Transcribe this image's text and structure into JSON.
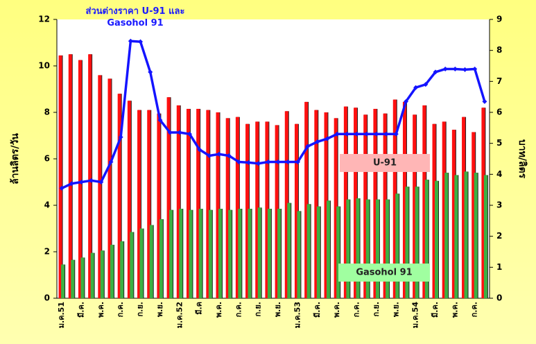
{
  "chart_data": {
    "type": "bar",
    "categories": [
      "ม.ค.51",
      null,
      "มี.ค.",
      null,
      "พ.ค.",
      null,
      "ก.ค.",
      null,
      "ก.ย.",
      null,
      "พ.ย.",
      null,
      "ม.ค.52",
      null,
      "มี.ค",
      null,
      "พ.ค.",
      null,
      "ก.ค.",
      null,
      "ก.ย.",
      null,
      "พ.ย.",
      null,
      "ม.ค.53",
      null,
      "มี.ค.",
      null,
      "พ.ค.",
      null,
      "ก.ค.",
      null,
      "ก.ย.",
      null,
      "พ.ย.",
      null,
      "ม.ค.54",
      null,
      "มี.ค.",
      null,
      "พ.ค.",
      null,
      "ก.ค.",
      null
    ],
    "y_label": "ล้านลิตร/วัน",
    "y2_label": "บาท/ลิตร",
    "ylim": [
      0,
      12
    ],
    "yticks": [
      0,
      2,
      4,
      6,
      8,
      10,
      12
    ],
    "y2lim": [
      0,
      9
    ],
    "y2ticks": [
      0,
      1,
      2,
      3,
      4,
      5,
      6,
      7,
      8,
      9
    ],
    "series": [
      {
        "name": "U-91",
        "color": "#ff1010",
        "legend_color": "#ffb6b6",
        "values": [
          10.45,
          10.5,
          10.25,
          10.5,
          9.6,
          9.45,
          8.8,
          8.5,
          8.1,
          8.1,
          7.95,
          8.65,
          8.3,
          8.15,
          8.15,
          8.1,
          8.0,
          7.75,
          7.8,
          7.5,
          7.6,
          7.6,
          7.45,
          8.05,
          7.5,
          8.45,
          8.1,
          8.0,
          7.75,
          8.25,
          8.2,
          7.9,
          8.15,
          7.95,
          8.55,
          8.45,
          7.9,
          8.3,
          7.5,
          7.6,
          7.25,
          7.8,
          7.15,
          8.2
        ]
      },
      {
        "name": "Gasohol 91",
        "color": "#3cb043",
        "legend_color": "#a0ffa0",
        "values": [
          1.45,
          1.65,
          1.75,
          1.95,
          2.05,
          2.3,
          2.45,
          2.85,
          3.0,
          3.15,
          3.4,
          3.8,
          3.85,
          3.8,
          3.85,
          3.8,
          3.85,
          3.8,
          3.85,
          3.85,
          3.9,
          3.85,
          3.85,
          4.1,
          3.75,
          4.05,
          3.95,
          4.2,
          3.95,
          4.25,
          4.3,
          4.25,
          4.25,
          4.25,
          4.5,
          4.8,
          4.8,
          5.1,
          5.05,
          5.4,
          5.3,
          5.45,
          5.4,
          5.3
        ]
      },
      {
        "name": "ส่วนต่างราคา U-91 และ Gasohol 91",
        "color": "#1414ff",
        "type": "line",
        "axis": "y2",
        "values": [
          3.55,
          3.7,
          3.75,
          3.8,
          3.75,
          4.4,
          5.2,
          8.3,
          8.28,
          7.3,
          5.75,
          5.35,
          5.35,
          5.3,
          4.8,
          4.6,
          4.65,
          4.6,
          4.4,
          4.38,
          4.35,
          4.4,
          4.4,
          4.4,
          4.4,
          4.9,
          5.05,
          5.15,
          5.3,
          5.3,
          5.3,
          5.3,
          5.3,
          5.3,
          5.3,
          6.35,
          6.8,
          6.9,
          7.3,
          7.4,
          7.4,
          7.38,
          7.4,
          6.35
        ]
      }
    ]
  }
}
